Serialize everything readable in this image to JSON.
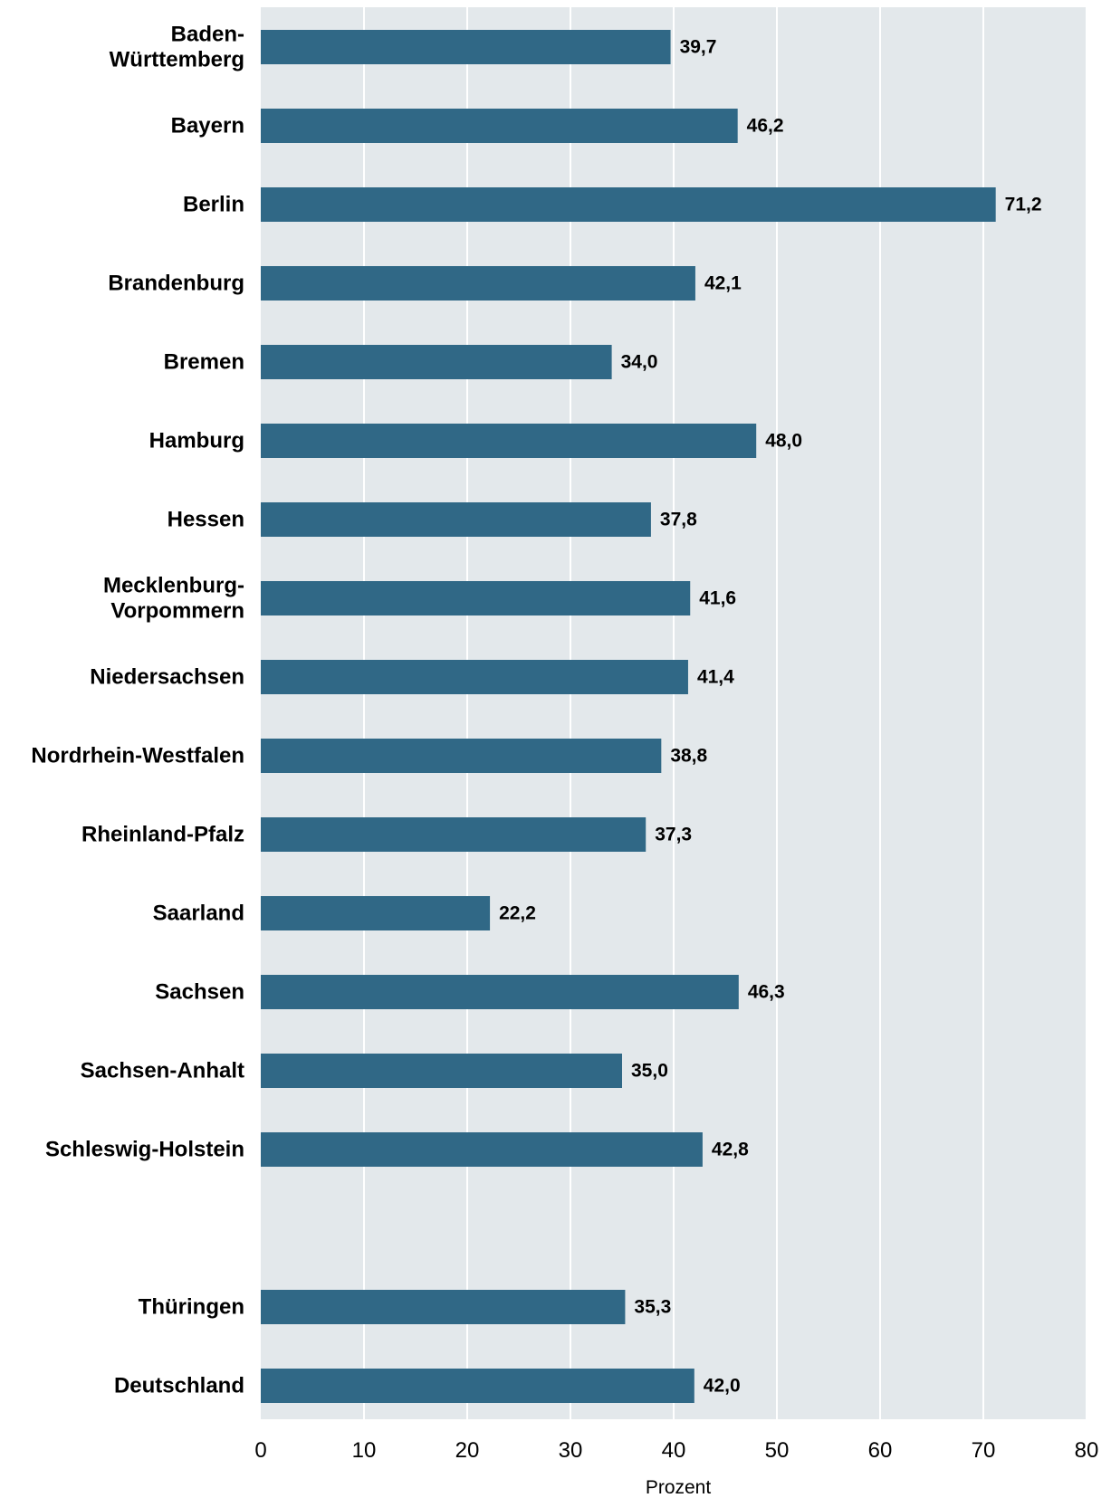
{
  "chart_data": {
    "type": "bar",
    "orientation": "horizontal",
    "categories": [
      [
        "Baden-",
        "Württemberg"
      ],
      [
        "Bayern"
      ],
      [
        "Berlin"
      ],
      [
        "Brandenburg"
      ],
      [
        "Bremen"
      ],
      [
        "Hamburg"
      ],
      [
        "Hessen"
      ],
      [
        "Mecklenburg-",
        "Vorpommern"
      ],
      [
        "Niedersachsen"
      ],
      [
        "Nordrhein-Westfalen"
      ],
      [
        "Rheinland-Pfalz"
      ],
      [
        "Saarland"
      ],
      [
        "Sachsen"
      ],
      [
        "Sachsen-Anhalt"
      ],
      [
        "Schleswig-Holstein"
      ],
      [],
      [
        "Thüringen"
      ],
      [
        "Deutschland"
      ]
    ],
    "values": [
      39.7,
      46.2,
      71.2,
      42.1,
      34.0,
      48.0,
      37.8,
      41.6,
      41.4,
      38.8,
      37.3,
      22.2,
      46.3,
      35.0,
      42.8,
      null,
      35.3,
      42.0
    ],
    "value_labels": [
      "39,7",
      "46,2",
      "71,2",
      "42,1",
      "34,0",
      "48,0",
      "37,8",
      "41,6",
      "41,4",
      "38,8",
      "37,3",
      "22,2",
      "46,3",
      "35,0",
      "42,8",
      "",
      "35,3",
      "42,0"
    ],
    "xlabel": "Prozent",
    "xlim": [
      0,
      80
    ],
    "xticks": [
      0,
      10,
      20,
      30,
      40,
      50,
      60,
      70,
      80
    ],
    "grid": "vertical",
    "colors": {
      "bar": "#306886",
      "plot_background": "#e3e8eb",
      "gridline": "#ffffff"
    }
  }
}
